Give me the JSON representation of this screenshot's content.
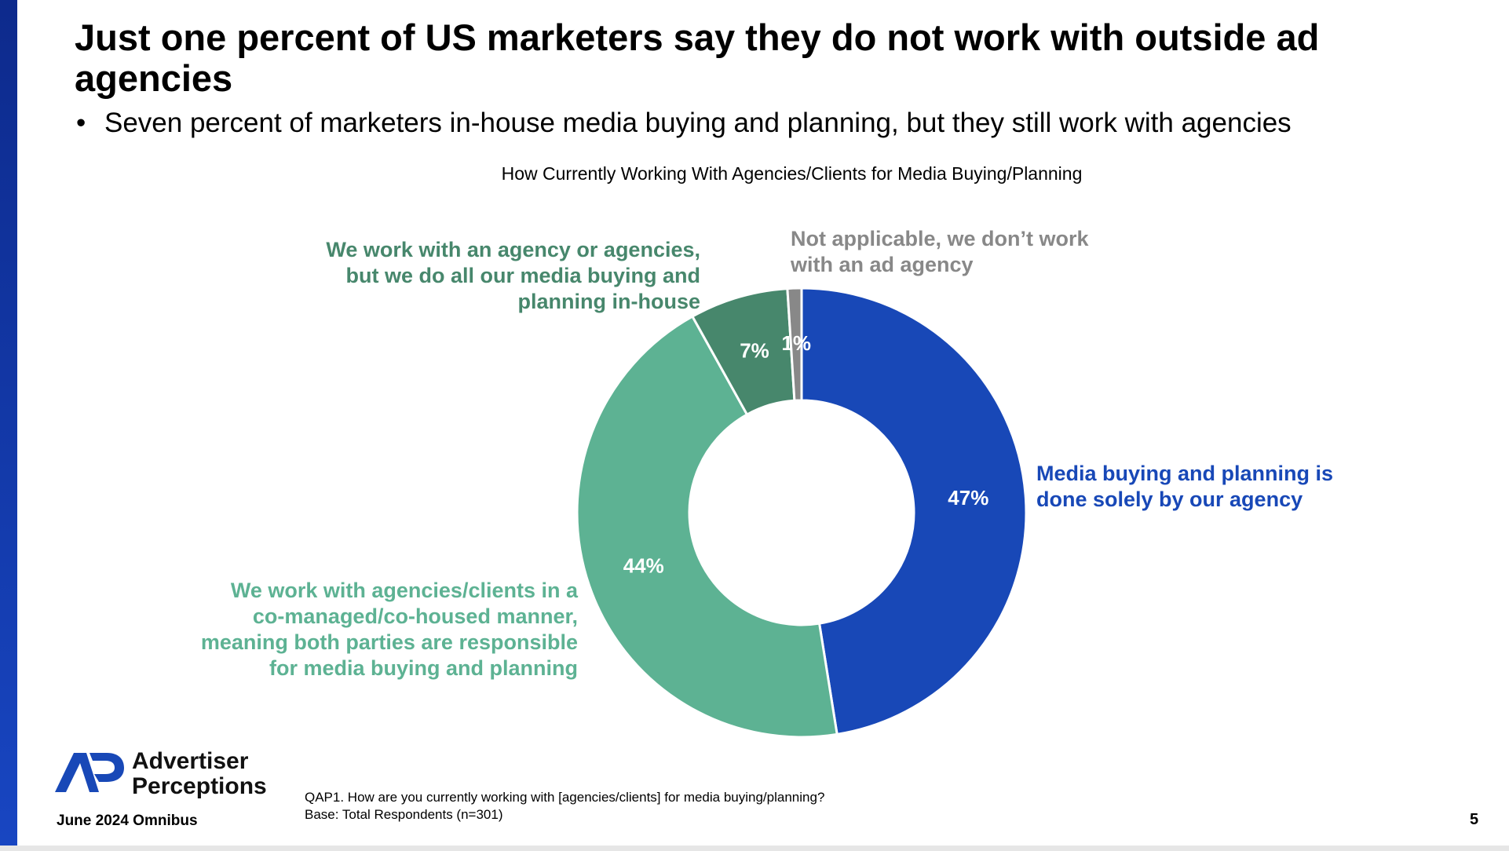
{
  "slide": {
    "title": "Just one percent of US marketers say they do not work with outside ad agencies",
    "bullet": "Seven percent of marketers in-house media buying and planning, but they still work with agencies",
    "date_label": "June 2024 Omnibus",
    "page_number": "5",
    "footnote_question": "QAP1. How are you currently working with [agencies/clients] for media buying/planning?",
    "footnote_base": "Base: Total Respondents (n=301)"
  },
  "logo": {
    "line1": "Advertiser",
    "line2": "Perceptions"
  },
  "chart_data": {
    "type": "pie",
    "donut": true,
    "title": "How Currently Working With Agencies/Clients for Media Buying/Planning",
    "start_angle_deg": 0,
    "direction": "clockwise",
    "slices": [
      {
        "label": "Media buying and planning is done solely by our agency",
        "value": 47,
        "value_label": "47%",
        "color": "#1848b7"
      },
      {
        "label": "We work with agencies/clients in a co-managed/co-housed manner, meaning both parties are responsible for media buying and planning",
        "value": 44,
        "value_label": "44%",
        "color": "#5db293"
      },
      {
        "label": "We work with an agency or agencies, but we do all our media buying and planning in-house",
        "value": 7,
        "value_label": "7%",
        "color": "#47876c"
      },
      {
        "label": "Not applicable, we don’t work with an ad agency",
        "value": 1,
        "value_label": "1%",
        "color": "#888888"
      }
    ]
  },
  "labels": {
    "blue": [
      "Media buying and planning is",
      "done solely by our agency"
    ],
    "teal": [
      "We work with agencies/clients in a",
      "co-managed/co-housed manner,",
      "meaning both parties are responsible",
      "for media buying and planning"
    ],
    "green": [
      "We work with an agency or agencies,",
      "but we do all our media buying and",
      "planning in-house"
    ],
    "gray": [
      "Not applicable, we don’t work",
      "with an ad agency"
    ]
  },
  "colors": {
    "brand_blue": "#1848b7",
    "side_bar": "#1846c2"
  }
}
